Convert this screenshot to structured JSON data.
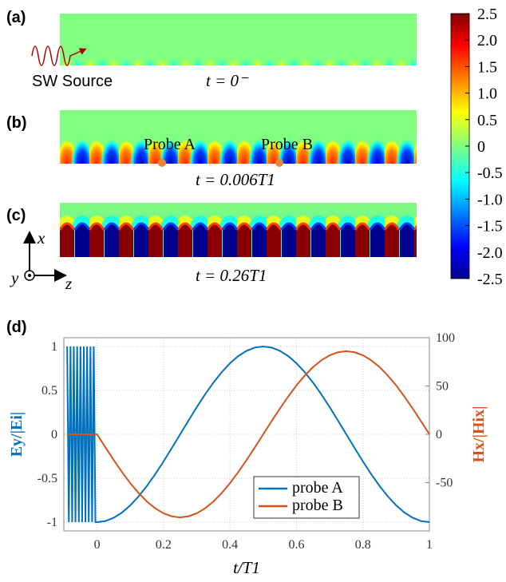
{
  "panels": [
    {
      "label": "(a)",
      "time": "t = 0⁻",
      "source": "SW Source"
    },
    {
      "label": "(b)",
      "time": "t = 0.006T1",
      "probes": [
        "Probe A",
        "Probe B"
      ]
    },
    {
      "label": "(c)",
      "time": "t = 0.26T1",
      "axes": [
        "x",
        "y",
        "z"
      ]
    }
  ],
  "colorbar": {
    "clim": [
      -2.5,
      2.5
    ],
    "ticks": [
      2.5,
      {
        "value": 2,
        "label": "2.0"
      },
      1.5,
      {
        "value": 1,
        "label": "1.0"
      },
      0.5,
      0,
      -0.5,
      {
        "value": -1,
        "label": "-1.0"
      },
      -1.5,
      {
        "value": -2,
        "label": "-2.0"
      },
      -2.5
    ]
  },
  "chart_data": {
    "type": "line",
    "label": "(d)",
    "xlabel": "t/T1",
    "ylabel": "Ey/|Ei|",
    "y2label": "Hx/|Hix|",
    "x": [
      -0.09,
      -0.085,
      -0.08,
      -0.075,
      -0.07,
      -0.065,
      -0.06,
      -0.055,
      -0.05,
      -0.045,
      -0.04,
      -0.035,
      -0.03,
      -0.025,
      -0.02,
      -0.015,
      -0.01,
      -0.005,
      0,
      0.025,
      0.05,
      0.075,
      0.1,
      0.125,
      0.15,
      0.175,
      0.2,
      0.225,
      0.25,
      0.275,
      0.3,
      0.325,
      0.35,
      0.375,
      0.4,
      0.425,
      0.45,
      0.475,
      0.5,
      0.525,
      0.55,
      0.575,
      0.6,
      0.625,
      0.65,
      0.675,
      0.7,
      0.725,
      0.75,
      0.775,
      0.8,
      0.825,
      0.85,
      0.875,
      0.9,
      0.925,
      0.95,
      0.975,
      1
    ],
    "series": [
      {
        "name": "probe A",
        "color": "#0072bd",
        "values": [
          1,
          -1,
          1,
          -1,
          1,
          -1,
          1,
          -1,
          1,
          -1,
          1,
          -1,
          1,
          -1,
          1,
          -1,
          1,
          -1,
          -1,
          -0.988,
          -0.951,
          -0.891,
          -0.809,
          -0.707,
          -0.588,
          -0.454,
          -0.309,
          -0.156,
          0,
          0.156,
          0.309,
          0.454,
          0.588,
          0.707,
          0.809,
          0.891,
          0.951,
          0.988,
          1,
          0.988,
          0.951,
          0.891,
          0.809,
          0.707,
          0.588,
          0.454,
          0.309,
          0.156,
          0,
          -0.156,
          -0.309,
          -0.454,
          -0.588,
          -0.707,
          -0.809,
          -0.891,
          -0.951,
          -0.988,
          -1
        ]
      },
      {
        "name": "probe B",
        "color": "#d95319",
        "axis": "y2",
        "values": [
          0,
          0,
          0,
          0,
          0,
          0,
          0,
          0,
          0,
          0,
          0,
          0,
          0,
          0,
          0,
          0,
          0,
          0,
          0,
          -13.5,
          -26.6,
          -39,
          -50.6,
          -60.8,
          -69.6,
          -76.6,
          -81.8,
          -84.9,
          -86,
          -84.9,
          -81.8,
          -76.6,
          -69.6,
          -60.8,
          -50.6,
          -39,
          -26.6,
          -13.5,
          0,
          13.5,
          26.6,
          39,
          50.6,
          60.8,
          69.6,
          76.6,
          81.8,
          84.9,
          86,
          84.9,
          81.8,
          76.6,
          69.6,
          60.8,
          50.6,
          39,
          26.6,
          13.5,
          0
        ]
      }
    ],
    "xlim": [
      -0.1,
      1
    ],
    "xticks": [
      0,
      0.2,
      0.4,
      0.6,
      0.8,
      1
    ],
    "ylim": [
      -1.1,
      1.1
    ],
    "yticks": [
      -1,
      -0.5,
      0,
      0.5,
      1
    ],
    "y2lim": [
      -100,
      100
    ],
    "y2ticks": [
      -50,
      0,
      50,
      100
    ],
    "grid": true,
    "legend": "lower center"
  }
}
